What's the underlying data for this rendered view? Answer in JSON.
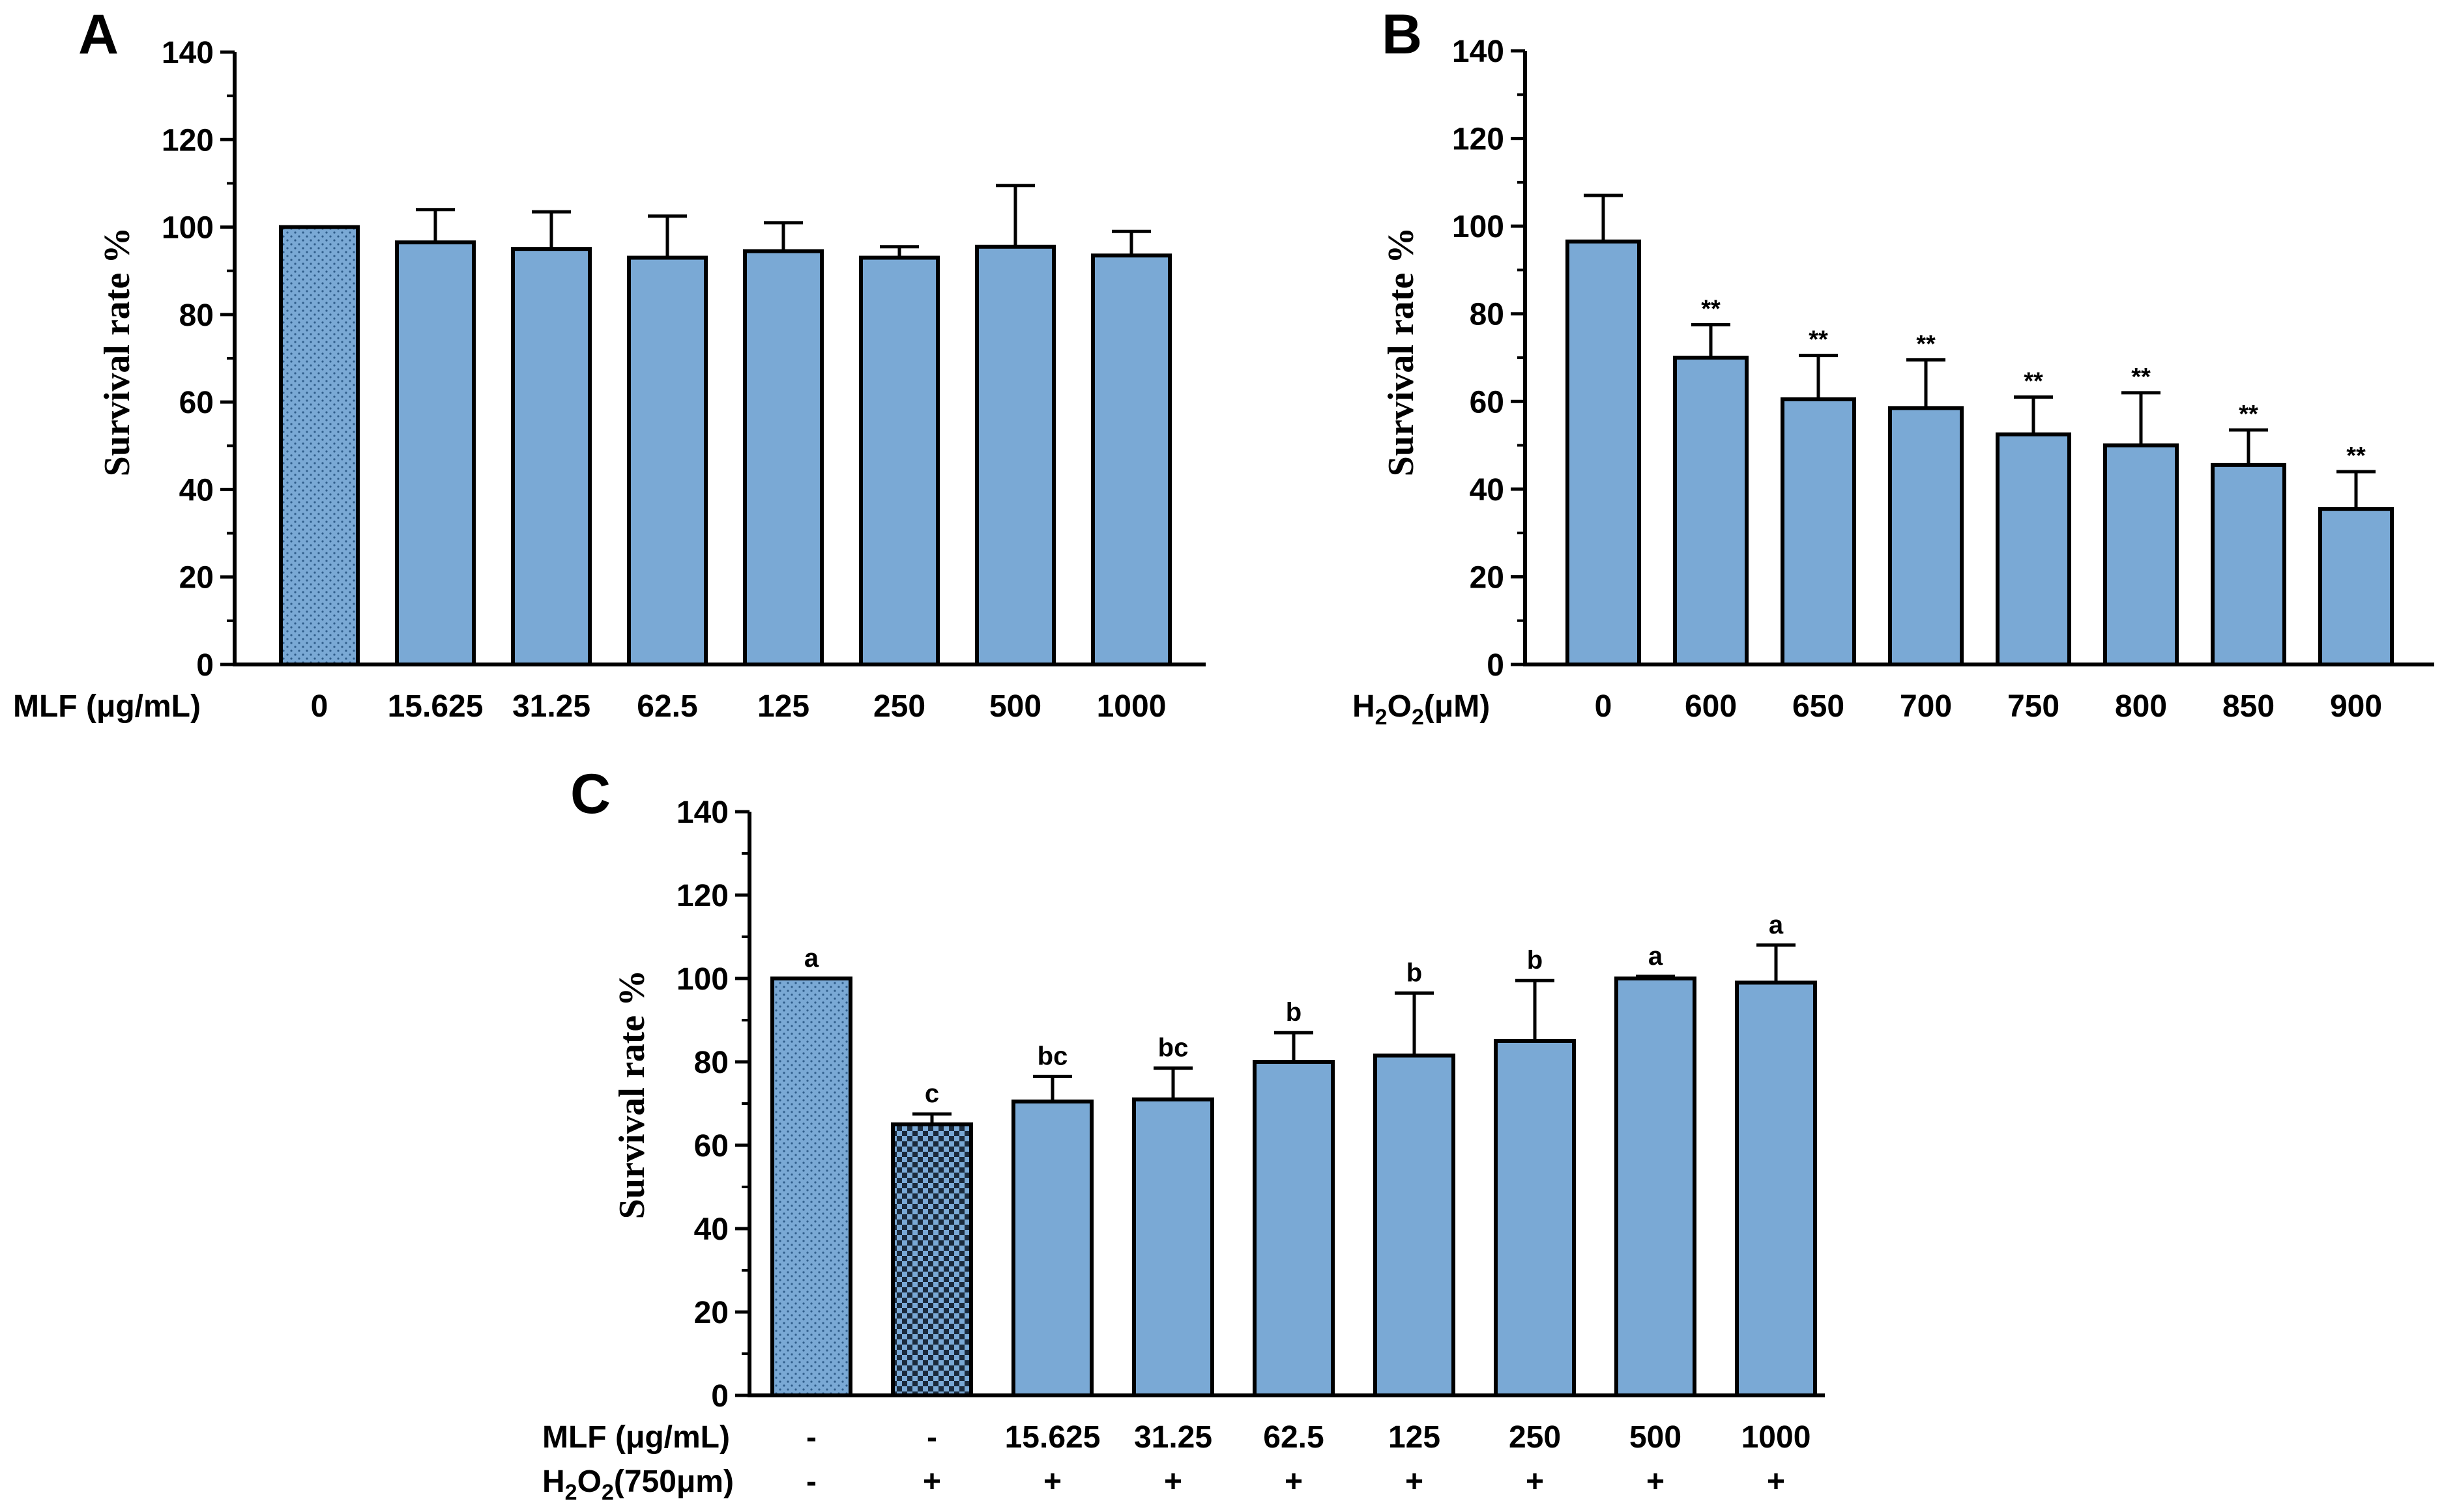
{
  "chart_data": [
    {
      "panel": "A",
      "type": "bar",
      "ylabel": "Survival rate %",
      "xlabel": "MLF (μg/mL)",
      "ylim": [
        0,
        140
      ],
      "yticks": [
        0,
        20,
        40,
        60,
        80,
        100,
        120,
        140
      ],
      "categories": [
        "0",
        "15.625",
        "31.25",
        "62.5",
        "125",
        "250",
        "500",
        "1000"
      ],
      "values": [
        100,
        96.5,
        95,
        93,
        94.5,
        93,
        95.5,
        93.5
      ],
      "errors": [
        0,
        7.5,
        8.5,
        9.5,
        6.5,
        2.5,
        14,
        5.5
      ],
      "fill_patterns": [
        "dotted",
        "solid",
        "solid",
        "solid",
        "solid",
        "solid",
        "solid",
        "solid"
      ],
      "annotations": [
        "",
        "",
        "",
        "",
        "",
        "",
        "",
        ""
      ]
    },
    {
      "panel": "B",
      "type": "bar",
      "ylabel": "Survival rate %",
      "xlabel": "H₂O₂(μM)",
      "ylim": [
        0,
        140
      ],
      "yticks": [
        0,
        20,
        40,
        60,
        80,
        100,
        120,
        140
      ],
      "categories": [
        "0",
        "600",
        "650",
        "700",
        "750",
        "800",
        "850",
        "900"
      ],
      "values": [
        96.5,
        70,
        60.5,
        58.5,
        52.5,
        50,
        45.5,
        35.5
      ],
      "errors": [
        10.5,
        7.5,
        10,
        11,
        8.5,
        12,
        8,
        8.5
      ],
      "fill_patterns": [
        "solid",
        "solid",
        "solid",
        "solid",
        "solid",
        "solid",
        "solid",
        "solid"
      ],
      "annotations": [
        "",
        "**",
        "**",
        "**",
        "**",
        "**",
        "**",
        "**"
      ]
    },
    {
      "panel": "C",
      "type": "bar",
      "ylabel": "Survival rate %",
      "ylim": [
        0,
        140
      ],
      "yticks": [
        0,
        20,
        40,
        60,
        80,
        100,
        120,
        140
      ],
      "row_labels": [
        "MLF (μg/mL)",
        "H₂O₂(750μm)"
      ],
      "categories": [
        "-",
        "-",
        "15.625",
        "31.25",
        "62.5",
        "125",
        "250",
        "500",
        "1000"
      ],
      "h2o2_row": [
        "-",
        "+",
        "+",
        "+",
        "+",
        "+",
        "+",
        "+",
        "+"
      ],
      "values": [
        100,
        65,
        70.5,
        71,
        80,
        81.5,
        85,
        100,
        99
      ],
      "errors": [
        0,
        2.5,
        6,
        7.5,
        7,
        15,
        14.5,
        0.5,
        9
      ],
      "fill_patterns": [
        "dotted",
        "checker",
        "solid",
        "solid",
        "solid",
        "solid",
        "solid",
        "solid",
        "solid"
      ],
      "annotations": [
        "a",
        "c",
        "bc",
        "bc",
        "b",
        "b",
        "b",
        "a",
        "a"
      ]
    }
  ],
  "colors": {
    "bar_fill": "#7aa9d5",
    "bar_stroke": "#000000",
    "checker_dark": "#1a2a3c"
  }
}
